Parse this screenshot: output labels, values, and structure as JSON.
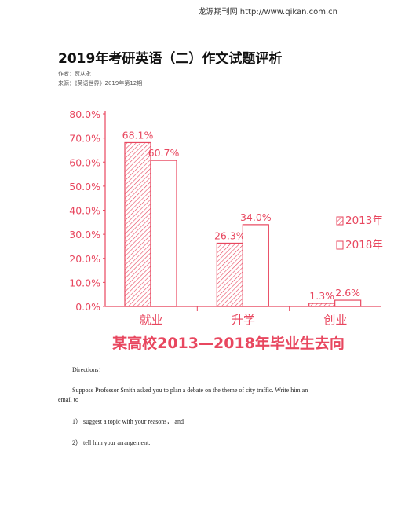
{
  "header": {
    "source_line": "龙源期刊网 http://www.qikan.com.cn"
  },
  "article": {
    "title": "2019年考研英语（二）作文试题评析",
    "author_label": "作者：",
    "author": "贾从永",
    "source_label": "来源：",
    "source": "《英语世界》2019年第12期"
  },
  "chart_data": {
    "type": "bar",
    "title": "某高校2013—2018年毕业生去向",
    "categories": [
      "就业",
      "升学",
      "创业"
    ],
    "series": [
      {
        "name": "2013年",
        "values": [
          68.1,
          26.3,
          1.3
        ],
        "labels": [
          "68.1%",
          "26.3%",
          "1.3%"
        ],
        "pattern": "hatched"
      },
      {
        "name": "2018年",
        "values": [
          60.7,
          34.0,
          2.6
        ],
        "labels": [
          "60.7%",
          "34.0%",
          "2.6%"
        ],
        "pattern": "solid"
      }
    ],
    "y_ticks": [
      "0.0%",
      "10.0%",
      "20.0%",
      "30.0%",
      "40.0%",
      "50.0%",
      "60.0%",
      "70.0%",
      "80.0%"
    ],
    "ylim": [
      0,
      80
    ],
    "grid": false,
    "legend_position": "right",
    "colors": {
      "accent": "#e8475f",
      "bar_fill": "#ffffff",
      "hatch": "#e8475f"
    }
  },
  "body": {
    "directions": "Directions：",
    "paragraph_line1": "Suppose Professor Smith asked you to plan a debate on the theme of city traffic. Write him an",
    "paragraph_line2": "email to",
    "item1": "1）  suggest a topic with your reasons，  and",
    "item2": "2）  tell him your arrangement."
  }
}
